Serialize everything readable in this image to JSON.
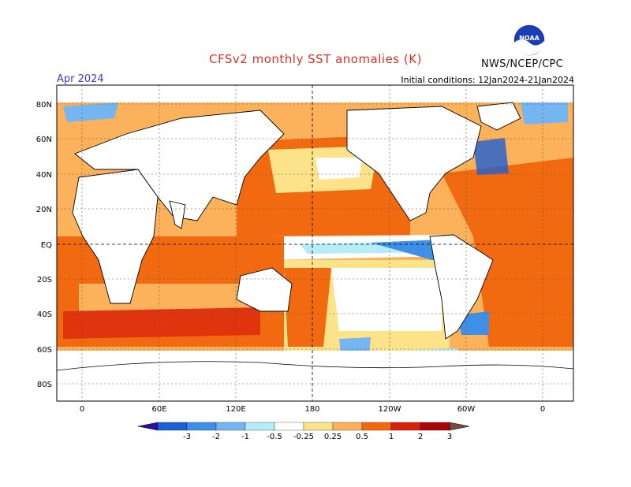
{
  "header": {
    "title": "CFSv2 monthly SST anomalies (K)",
    "month": "Apr 2024",
    "initial_conditions": "Initial conditions: 12Jan2024-21Jan2024",
    "agency": "NWS/NCEP/CPC",
    "logo_text": "NOAA"
  },
  "axes": {
    "lat_labels": [
      "80N",
      "60N",
      "40N",
      "20N",
      "EQ",
      "20S",
      "40S",
      "60S",
      "80S"
    ],
    "lon_labels": [
      "0",
      "60E",
      "120E",
      "180",
      "120W",
      "60W",
      "0"
    ]
  },
  "colorbar": {
    "tick_labels": [
      "-3",
      "-2",
      "-1",
      "-0.5",
      "-0.25",
      "0.25",
      "0.5",
      "1",
      "2",
      "3"
    ],
    "colors": [
      "#2b0fa0",
      "#1e5fd4",
      "#3d8fe8",
      "#74b5f2",
      "#b4ecf8",
      "#ffffff",
      "#fce38a",
      "#fbb25a",
      "#f26a10",
      "#d8230c",
      "#aa0808",
      "#7a4a40"
    ]
  }
}
